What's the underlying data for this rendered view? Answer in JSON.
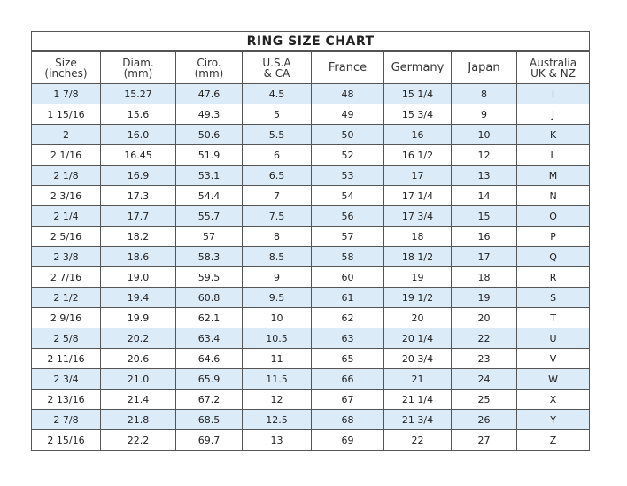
{
  "title": "RING SIZE CHART",
  "columns": [
    [
      "Size",
      "(inches)"
    ],
    [
      "Diam.",
      "(mm)"
    ],
    [
      "Ciro.",
      "(mm)"
    ],
    [
      "U.S.A",
      "& CA"
    ],
    [
      "France",
      ""
    ],
    [
      "Germany",
      ""
    ],
    [
      "Japan",
      ""
    ],
    [
      "Australia",
      "UK & NZ"
    ]
  ],
  "rows": [
    [
      "1 7/8",
      "15.27",
      "47.6",
      "4.5",
      "48",
      "15 1/4",
      "8",
      "I"
    ],
    [
      "1 15/16",
      "15.6",
      "49.3",
      "5",
      "49",
      "15 3/4",
      "9",
      "J"
    ],
    [
      "2",
      "16.0",
      "50.6",
      "5.5",
      "50",
      "16",
      "10",
      "K"
    ],
    [
      "2 1/16",
      "16.45",
      "51.9",
      "6",
      "52",
      "16 1/2",
      "12",
      "L"
    ],
    [
      "2 1/8",
      "16.9",
      "53.1",
      "6.5",
      "53",
      "17",
      "13",
      "M"
    ],
    [
      "2 3/16",
      "17.3",
      "54.4",
      "7",
      "54",
      "17 1/4",
      "14",
      "N"
    ],
    [
      "2 1/4",
      "17.7",
      "55.7",
      "7.5",
      "56",
      "17 3/4",
      "15",
      "O"
    ],
    [
      "2 5/16",
      "18.2",
      "57",
      "8",
      "57",
      "18",
      "16",
      "P"
    ],
    [
      "2 3/8",
      "18.6",
      "58.3",
      "8.5",
      "58",
      "18 1/2",
      "17",
      "Q"
    ],
    [
      "2 7/16",
      "19.0",
      "59.5",
      "9",
      "60",
      "19",
      "18",
      "R"
    ],
    [
      "2 1/2",
      "19.4",
      "60.8",
      "9.5",
      "61",
      "19 1/2",
      "19",
      "S"
    ],
    [
      "2 9/16",
      "19.9",
      "62.1",
      "10",
      "62",
      "20",
      "20",
      "T"
    ],
    [
      "2 5/8",
      "20.2",
      "63.4",
      "10.5",
      "63",
      "20 1/4",
      "22",
      "U"
    ],
    [
      "2 11/16",
      "20.6",
      "64.6",
      "11",
      "65",
      "20 3/4",
      "23",
      "V"
    ],
    [
      "2 3/4",
      "21.0",
      "65.9",
      "11.5",
      "66",
      "21",
      "24",
      "W"
    ],
    [
      "2 13/16",
      "21.4",
      "67.2",
      "12",
      "67",
      "21 1/4",
      "25",
      "X"
    ],
    [
      "2 7/8",
      "21.8",
      "68.5",
      "12.5",
      "68",
      "21 3/4",
      "26",
      "Y"
    ],
    [
      "2 15/16",
      "22.2",
      "69.7",
      "13",
      "69",
      "22",
      "27",
      "Z"
    ]
  ]
}
